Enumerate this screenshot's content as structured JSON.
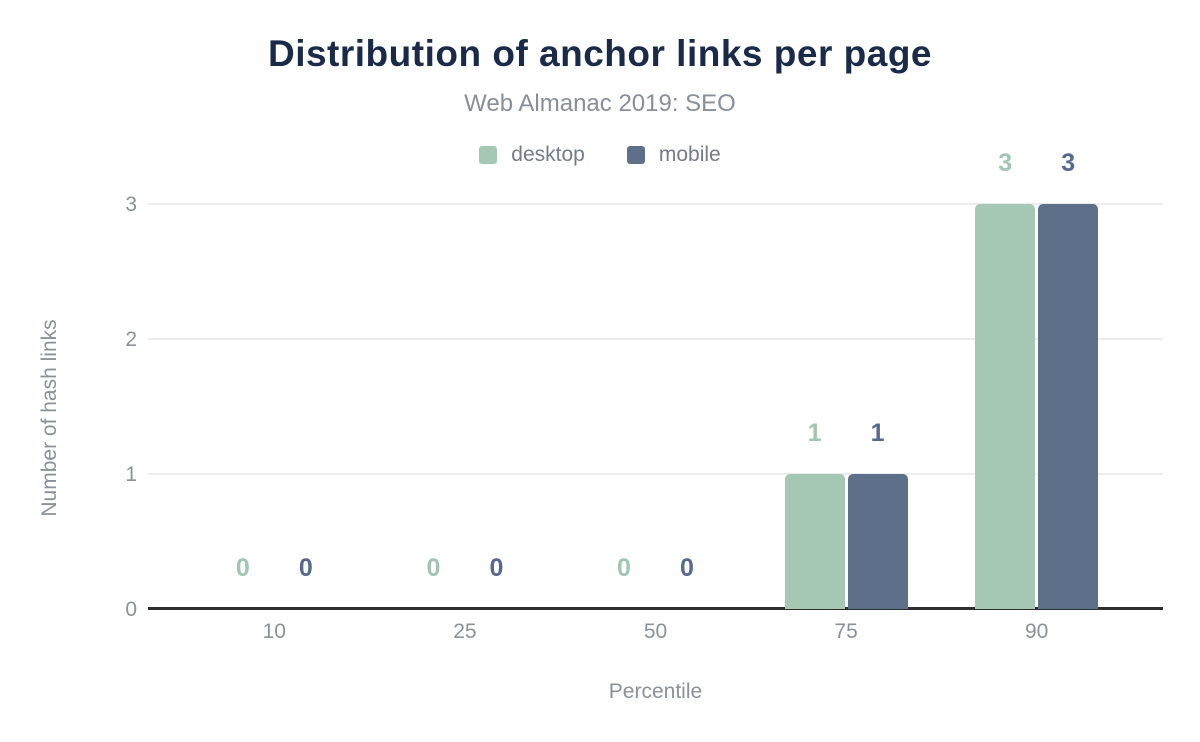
{
  "chart_data": {
    "type": "bar",
    "title": "Distribution of anchor links per page",
    "subtitle": "Web Almanac 2019: SEO",
    "xlabel": "Percentile",
    "ylabel": "Number of hash links",
    "categories": [
      "10",
      "25",
      "50",
      "75",
      "90"
    ],
    "series": [
      {
        "name": "desktop",
        "color": "#a5c8b4",
        "label_color": "#a0c5b0",
        "values": [
          0,
          0,
          0,
          1,
          3
        ]
      },
      {
        "name": "mobile",
        "color": "#5e7089",
        "label_color": "#56698c",
        "values": [
          0,
          0,
          0,
          1,
          3
        ]
      }
    ],
    "y_ticks": [
      0,
      1,
      2,
      3
    ],
    "ylim": [
      0,
      3
    ],
    "grid": "horizontal",
    "legend_position": "top",
    "colors": {
      "title": "#1a2b49",
      "subtitle": "#878f9a",
      "axis_text": "#8b919b",
      "legend_text": "#737c8a",
      "gridline": "#ededed",
      "baseline": "#2e2e2e",
      "background": "#ffffff"
    }
  }
}
